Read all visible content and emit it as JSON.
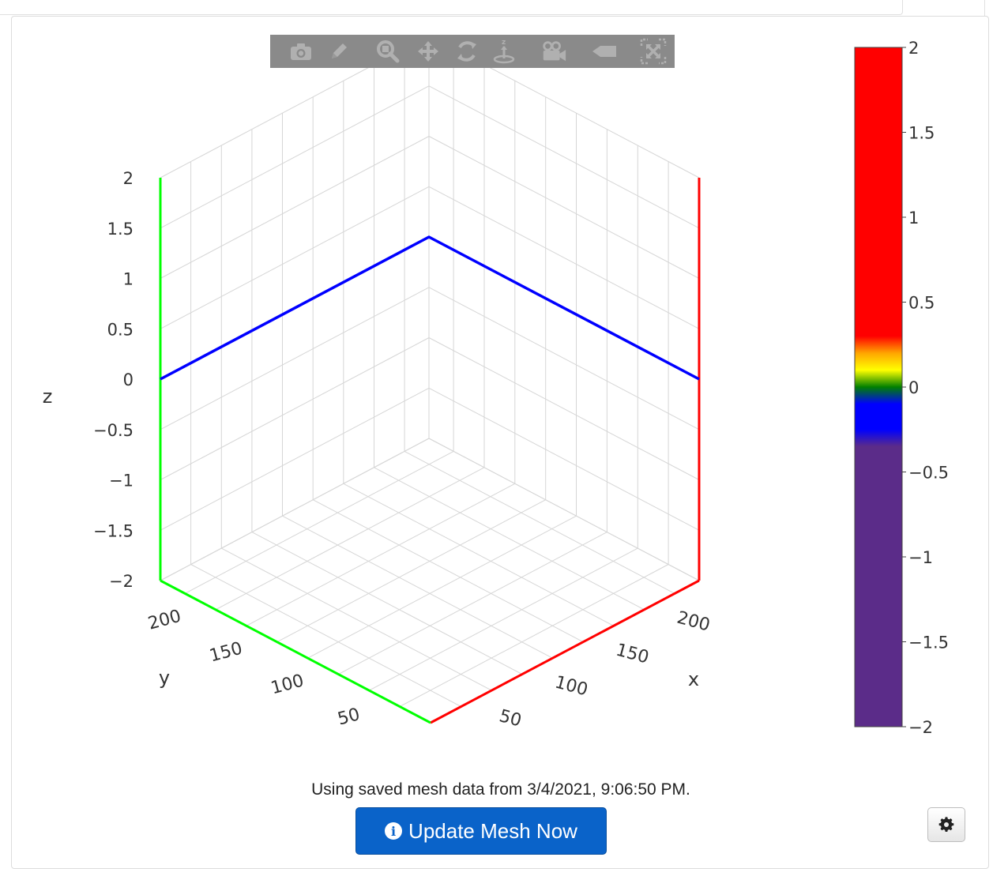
{
  "status": {
    "message": "Using saved mesh data from 3/4/2021, 9:06:50 PM."
  },
  "update_button": {
    "label": "Update Mesh Now",
    "icon": "info-circle-icon",
    "color": "#0a63c9"
  },
  "settings_button": {
    "icon": "gear-icon"
  },
  "modebar": {
    "buttons": [
      {
        "name": "camera-icon"
      },
      {
        "name": "pencil-icon"
      },
      {
        "name": "zoom-icon"
      },
      {
        "name": "pan-icon"
      },
      {
        "name": "orbit-rotation-icon"
      },
      {
        "name": "turntable-rotation-icon"
      },
      {
        "name": "reset-camera-icon"
      },
      {
        "name": "hover-label-icon"
      },
      {
        "name": "fullscreen-icon"
      }
    ]
  },
  "chart_data": {
    "type": "surface3d",
    "axes": {
      "x": {
        "title": "x",
        "ticks": [
          50,
          100,
          150,
          200
        ],
        "range": [
          0,
          220
        ]
      },
      "y": {
        "title": "y",
        "ticks": [
          50,
          100,
          150,
          200
        ],
        "range": [
          0,
          220
        ]
      },
      "z": {
        "title": "z",
        "ticks": [
          -2,
          -1.5,
          -1,
          -0.5,
          0,
          0.5,
          1,
          1.5,
          2
        ],
        "range": [
          -2,
          2
        ]
      }
    },
    "axis_line_colors": {
      "x": "#ff0000",
      "y": "#00ff00"
    },
    "mesh": {
      "z_value": 0,
      "color": "#0000ff"
    },
    "colorbar": {
      "min": -2,
      "max": 2,
      "ticks": [
        -2,
        -1.5,
        -1,
        -0.5,
        0,
        0.5,
        1,
        1.5,
        2
      ],
      "colorscale": [
        {
          "value": -2,
          "color": "#5b2c89"
        },
        {
          "value": -0.35,
          "color": "#5b2c89"
        },
        {
          "value": -0.25,
          "color": "#0000ff"
        },
        {
          "value": -0.1,
          "color": "#0000ff"
        },
        {
          "value": 0,
          "color": "#008000"
        },
        {
          "value": 0.1,
          "color": "#ffff00"
        },
        {
          "value": 0.2,
          "color": "#ffa500"
        },
        {
          "value": 0.3,
          "color": "#ff0000"
        },
        {
          "value": 2,
          "color": "#ff0000"
        }
      ]
    },
    "grid": true
  }
}
